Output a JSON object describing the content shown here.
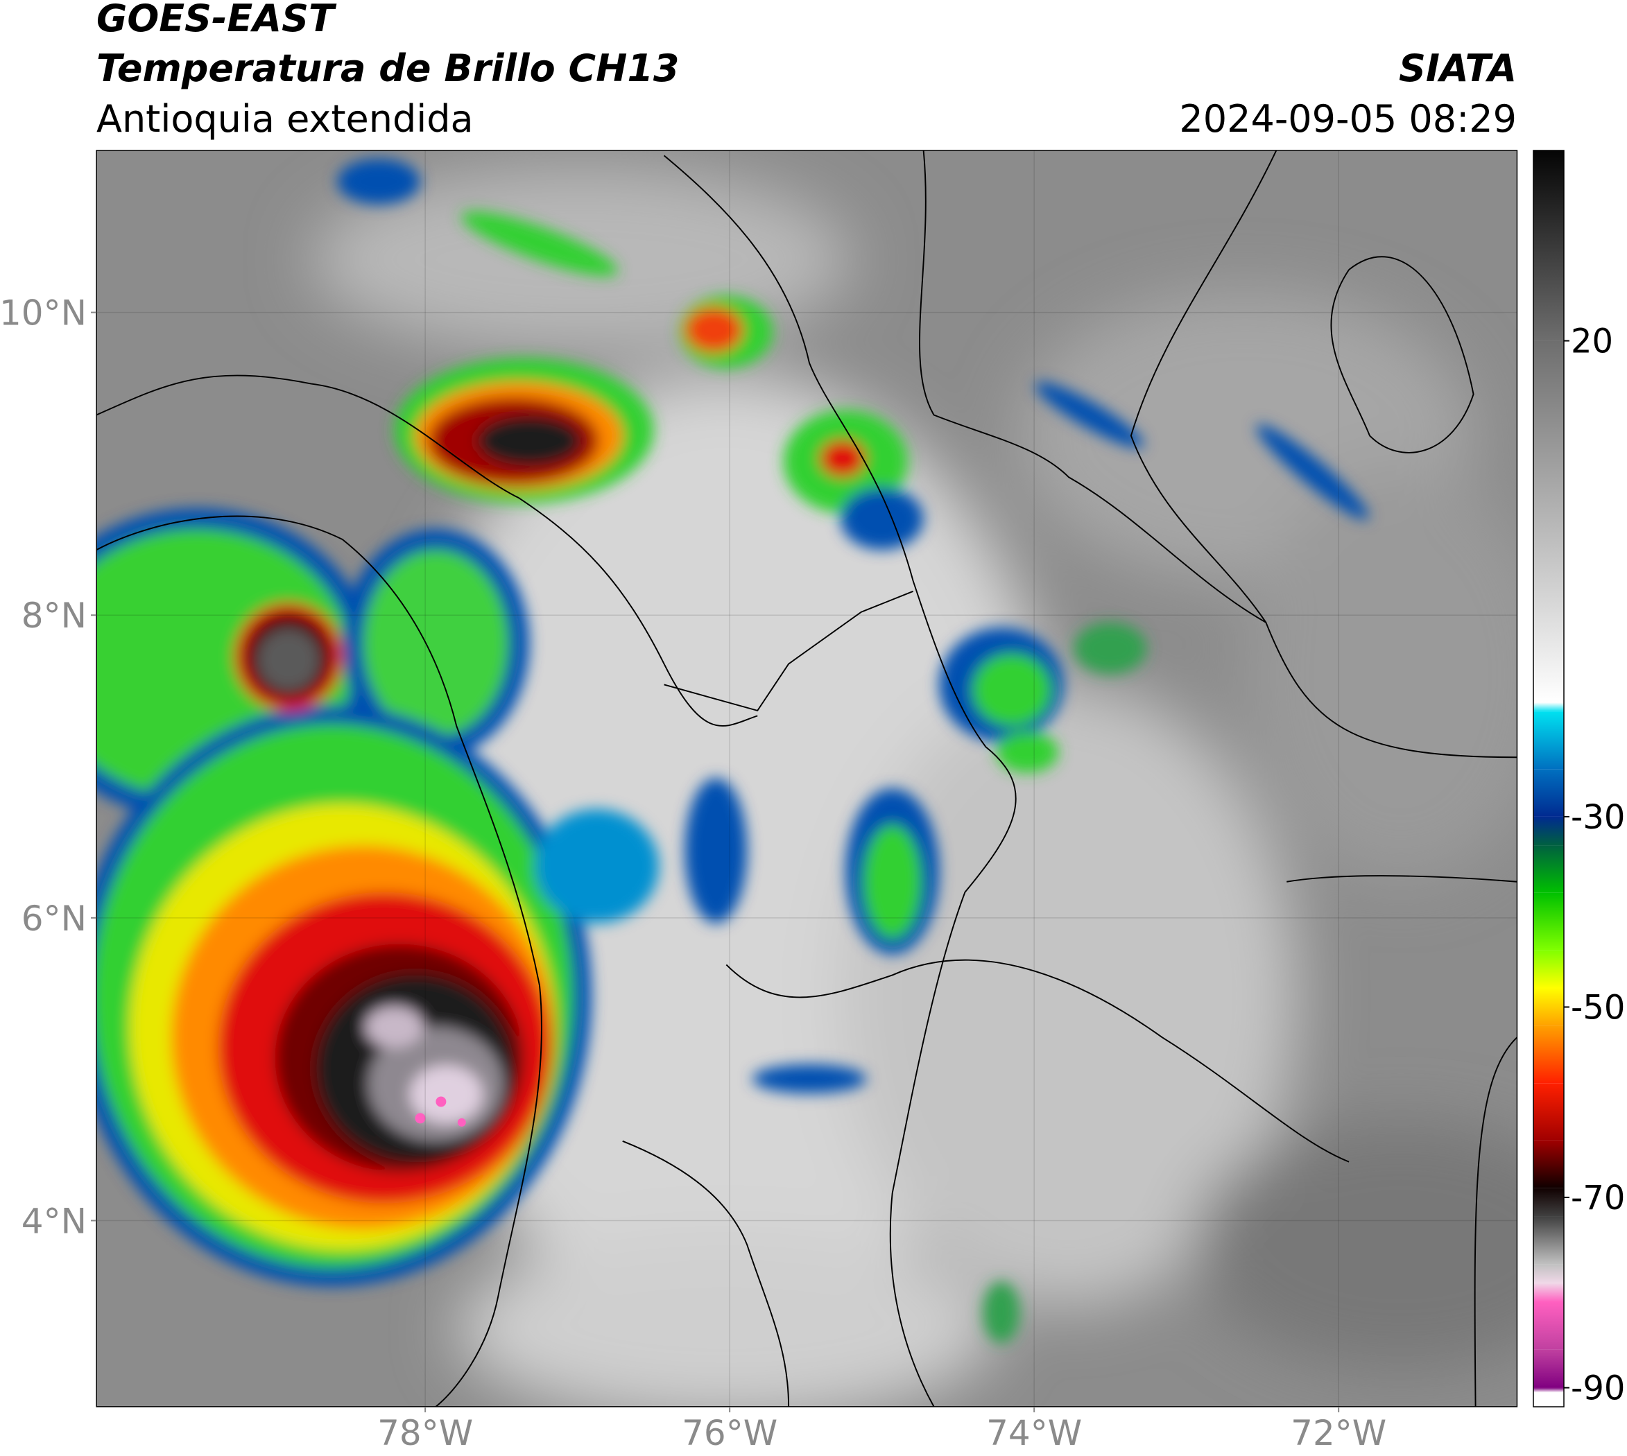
{
  "chart_data": {
    "type": "map",
    "title": "GOES-EAST",
    "subtitle": "Temperatura de Brillo CH13",
    "region": "Antioquia extendida",
    "source": "SIATA",
    "timestamp": "2024-09-05 08:29",
    "xlim": [
      -80.16,
      -70.83
    ],
    "ylim": [
      2.77,
      11.07
    ],
    "xticks": [
      {
        "value": -78,
        "label": "78°W"
      },
      {
        "value": -76,
        "label": "76°W"
      },
      {
        "value": -74,
        "label": "74°W"
      },
      {
        "value": -72,
        "label": "72°W"
      }
    ],
    "yticks": [
      {
        "value": 10,
        "label": "10°N"
      },
      {
        "value": 8,
        "label": "8°N"
      },
      {
        "value": 6,
        "label": "6°N"
      },
      {
        "value": 4,
        "label": "4°N"
      }
    ],
    "grid": true,
    "colorbar": {
      "clim": [
        -92,
        40
      ],
      "ticks": [
        20,
        -30,
        -50,
        -70,
        -90
      ],
      "stops": [
        {
          "value": 40,
          "color": "#050505"
        },
        {
          "value": 20,
          "color": "#6e6e6e"
        },
        {
          "value": -18,
          "color": "#ffffff"
        },
        {
          "value": -19,
          "color": "#00e0f0"
        },
        {
          "value": -25,
          "color": "#0070c0"
        },
        {
          "value": -30,
          "color": "#002a90"
        },
        {
          "value": -33,
          "color": "#006040"
        },
        {
          "value": -38,
          "color": "#00c000"
        },
        {
          "value": -44,
          "color": "#80ff00"
        },
        {
          "value": -48,
          "color": "#ffff00"
        },
        {
          "value": -52,
          "color": "#ffa000"
        },
        {
          "value": -58,
          "color": "#ff2000"
        },
        {
          "value": -64,
          "color": "#a00000"
        },
        {
          "value": -69,
          "color": "#100000"
        },
        {
          "value": -72,
          "color": "#404040"
        },
        {
          "value": -77,
          "color": "#c0c0c0"
        },
        {
          "value": -79,
          "color": "#f0d8e8"
        },
        {
          "value": -81,
          "color": "#ff60c0"
        },
        {
          "value": -86,
          "color": "#c040a0"
        },
        {
          "value": -90,
          "color": "#800080"
        },
        {
          "value": -90.5,
          "color": "#ffffff"
        },
        {
          "value": -92,
          "color": "#ffffff"
        }
      ]
    }
  }
}
